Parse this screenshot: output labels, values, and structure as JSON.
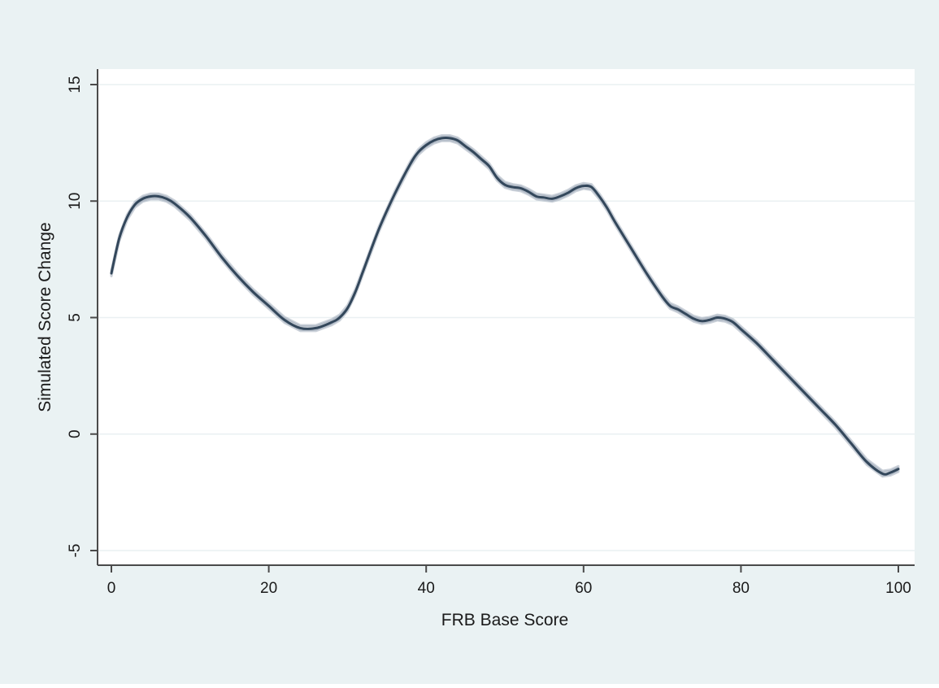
{
  "chart_data": {
    "type": "line",
    "title": "",
    "xlabel": "FRB Base Score",
    "ylabel": "Simulated Score Change",
    "xlim": [
      0,
      100
    ],
    "ylim": [
      -5,
      15
    ],
    "xticks": [
      0,
      20,
      40,
      60,
      80,
      100
    ],
    "yticks": [
      -5,
      0,
      5,
      10,
      15
    ],
    "xtick_labels": [
      "0",
      "20",
      "40",
      "60",
      "80",
      "100"
    ],
    "ytick_labels": [
      "-5",
      "0",
      "5",
      "10",
      "15"
    ],
    "grid": "horizontal",
    "legend": "none",
    "colors": {
      "outer_background": "#eaf2f3",
      "plot_background": "#ffffff",
      "line": "#33475b",
      "band": "#9aa6b5",
      "grid": "#eaf0f2",
      "axis": "#4a4a4a"
    },
    "series": [
      {
        "x": [
          0,
          1,
          2,
          3,
          4,
          5,
          6,
          7,
          8,
          10,
          12,
          14,
          16,
          18,
          20,
          22,
          24,
          26,
          28,
          29,
          30,
          31,
          32,
          34,
          36,
          38,
          39,
          40,
          41,
          42,
          43,
          44,
          45,
          46,
          47,
          48,
          49,
          50,
          51,
          52,
          53,
          54,
          55,
          56,
          57,
          58,
          59,
          60,
          61,
          62,
          63,
          64,
          66,
          68,
          70,
          71,
          72,
          73,
          74,
          75,
          76,
          77,
          78,
          79,
          80,
          82,
          84,
          86,
          88,
          90,
          92,
          94,
          96,
          98,
          99,
          100
        ],
        "y": [
          6.9,
          8.4,
          9.3,
          9.85,
          10.1,
          10.2,
          10.2,
          10.1,
          9.9,
          9.3,
          8.5,
          7.6,
          6.8,
          6.1,
          5.5,
          4.9,
          4.55,
          4.55,
          4.8,
          5.0,
          5.4,
          6.1,
          7.0,
          8.8,
          10.3,
          11.6,
          12.1,
          12.4,
          12.6,
          12.7,
          12.7,
          12.6,
          12.35,
          12.1,
          11.8,
          11.5,
          11.0,
          10.7,
          10.6,
          10.55,
          10.4,
          10.2,
          10.15,
          10.1,
          10.2,
          10.35,
          10.55,
          10.65,
          10.6,
          10.2,
          9.7,
          9.1,
          8.0,
          6.9,
          5.9,
          5.5,
          5.35,
          5.15,
          4.95,
          4.85,
          4.9,
          5.0,
          4.95,
          4.8,
          4.5,
          3.9,
          3.2,
          2.5,
          1.8,
          1.1,
          0.4,
          -0.4,
          -1.2,
          -1.7,
          -1.65,
          -1.5
        ],
        "band_halfwidth": 0.12
      }
    ]
  }
}
